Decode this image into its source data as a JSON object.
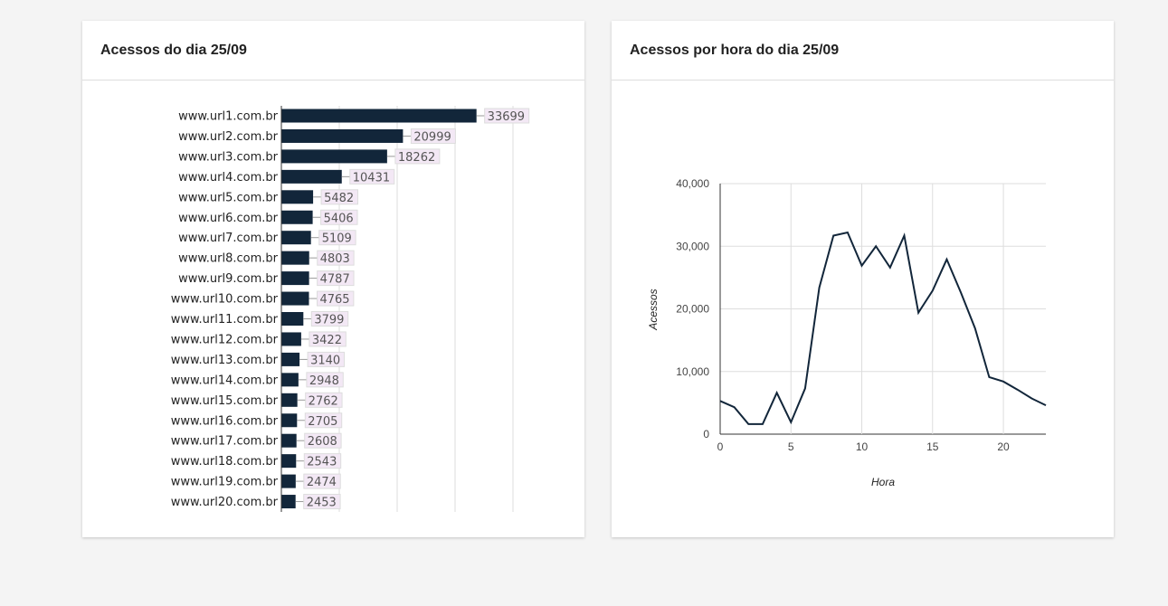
{
  "cards": [
    {
      "title": "Acessos do dia 25/09"
    },
    {
      "title": "Acessos por hora do dia 25/09"
    }
  ],
  "chart_data": [
    {
      "type": "bar",
      "orientation": "horizontal",
      "title": "Acessos do dia 25/09",
      "categories": [
        "www.url1.com.br",
        "www.url2.com.br",
        "www.url3.com.br",
        "www.url4.com.br",
        "www.url5.com.br",
        "www.url6.com.br",
        "www.url7.com.br",
        "www.url8.com.br",
        "www.url9.com.br",
        "www.url10.com.br",
        "www.url11.com.br",
        "www.url12.com.br",
        "www.url13.com.br",
        "www.url14.com.br",
        "www.url15.com.br",
        "www.url16.com.br",
        "www.url17.com.br",
        "www.url18.com.br",
        "www.url19.com.br",
        "www.url20.com.br"
      ],
      "values": [
        33699,
        20999,
        18262,
        10431,
        5482,
        5406,
        5109,
        4803,
        4787,
        4765,
        3799,
        3422,
        3140,
        2948,
        2762,
        2705,
        2608,
        2543,
        2474,
        2453
      ],
      "xlim": [
        0,
        40000
      ],
      "grid": true,
      "bar_color": "#12263a"
    },
    {
      "type": "line",
      "title": "Acessos por hora do dia 25/09",
      "xlabel": "Hora",
      "ylabel": "Acessos",
      "x": [
        0,
        1,
        2,
        3,
        4,
        5,
        6,
        7,
        8,
        9,
        10,
        11,
        12,
        13,
        14,
        15,
        16,
        17,
        18,
        19,
        20,
        21,
        22,
        23
      ],
      "values": [
        5300,
        4300,
        1600,
        1600,
        6600,
        1900,
        7300,
        23400,
        31700,
        32200,
        26900,
        30000,
        26600,
        31700,
        19400,
        22900,
        27900,
        22600,
        16900,
        9100,
        8400,
        7100,
        5700,
        4600
      ],
      "xlim": [
        0,
        23
      ],
      "ylim": [
        0,
        40000
      ],
      "xticks": [
        {
          "v": 0,
          "label": "0"
        },
        {
          "v": 5,
          "label": "5"
        },
        {
          "v": 10,
          "label": "10"
        },
        {
          "v": 15,
          "label": "15"
        },
        {
          "v": 20,
          "label": "20"
        }
      ],
      "yticks": [
        {
          "v": 0,
          "label": "0"
        },
        {
          "v": 10000,
          "label": "10,000"
        },
        {
          "v": 20000,
          "label": "20,000"
        },
        {
          "v": 30000,
          "label": "30,000"
        },
        {
          "v": 40000,
          "label": "40,000"
        }
      ],
      "grid": true,
      "line_color": "#12263a"
    }
  ]
}
